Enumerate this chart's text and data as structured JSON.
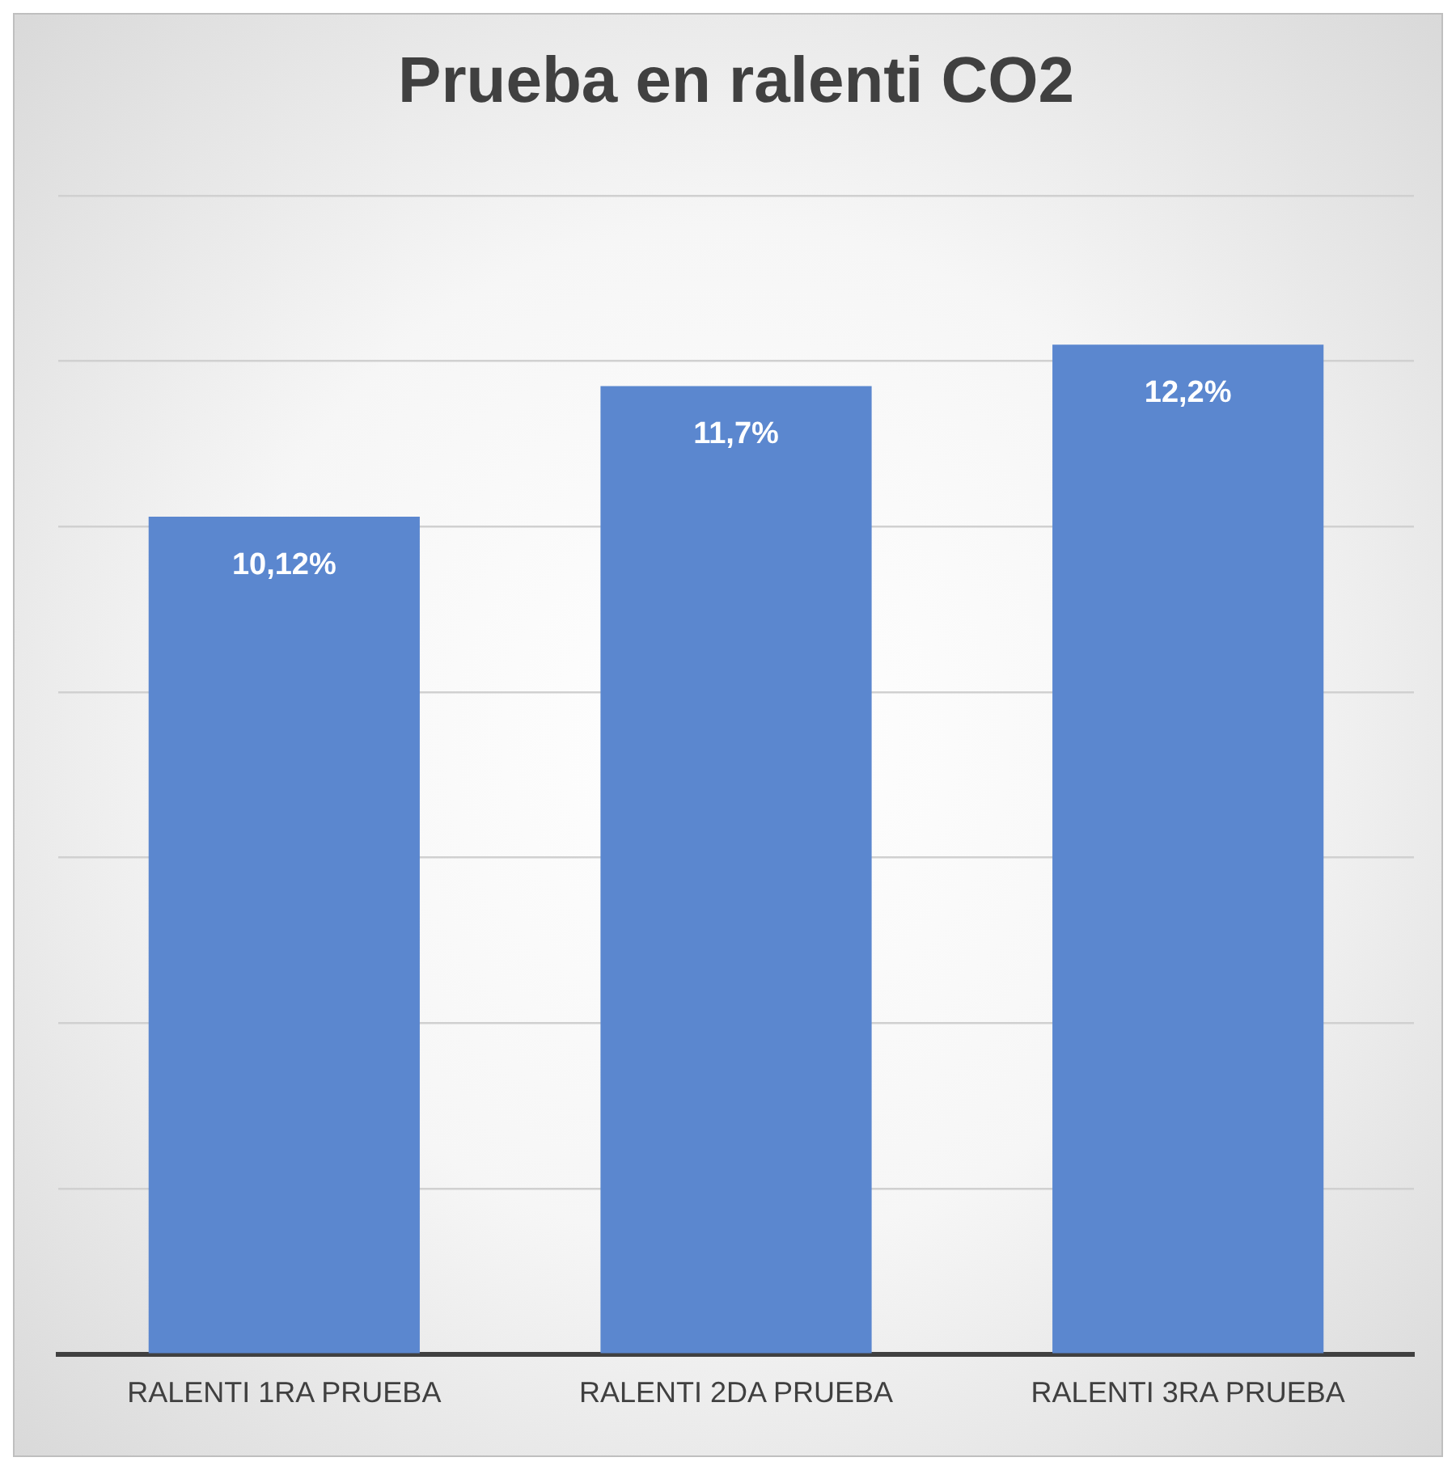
{
  "chart_data": {
    "type": "bar",
    "title": "Prueba en ralenti CO2",
    "categories": [
      "RALENTI 1RA PRUEBA",
      "RALENTI 2DA PRUEBA",
      "RALENTI 3RA PRUEBA"
    ],
    "values": [
      10.12,
      11.7,
      12.2
    ],
    "value_labels": [
      "10,12%",
      "11,7%",
      "12,2%"
    ],
    "color": "#5b87cf",
    "ylim": [
      0,
      14
    ],
    "yticks": [
      {
        "value": 0,
        "label": null
      },
      {
        "value": 2,
        "label": null
      },
      {
        "value": 4,
        "label": null
      },
      {
        "value": 6,
        "label": null
      },
      {
        "value": 8,
        "label": null
      },
      {
        "value": 10,
        "label": null
      },
      {
        "value": 12,
        "label": null
      },
      {
        "value": 14,
        "label": null
      }
    ],
    "grid": "y",
    "tick_labels": "x"
  }
}
